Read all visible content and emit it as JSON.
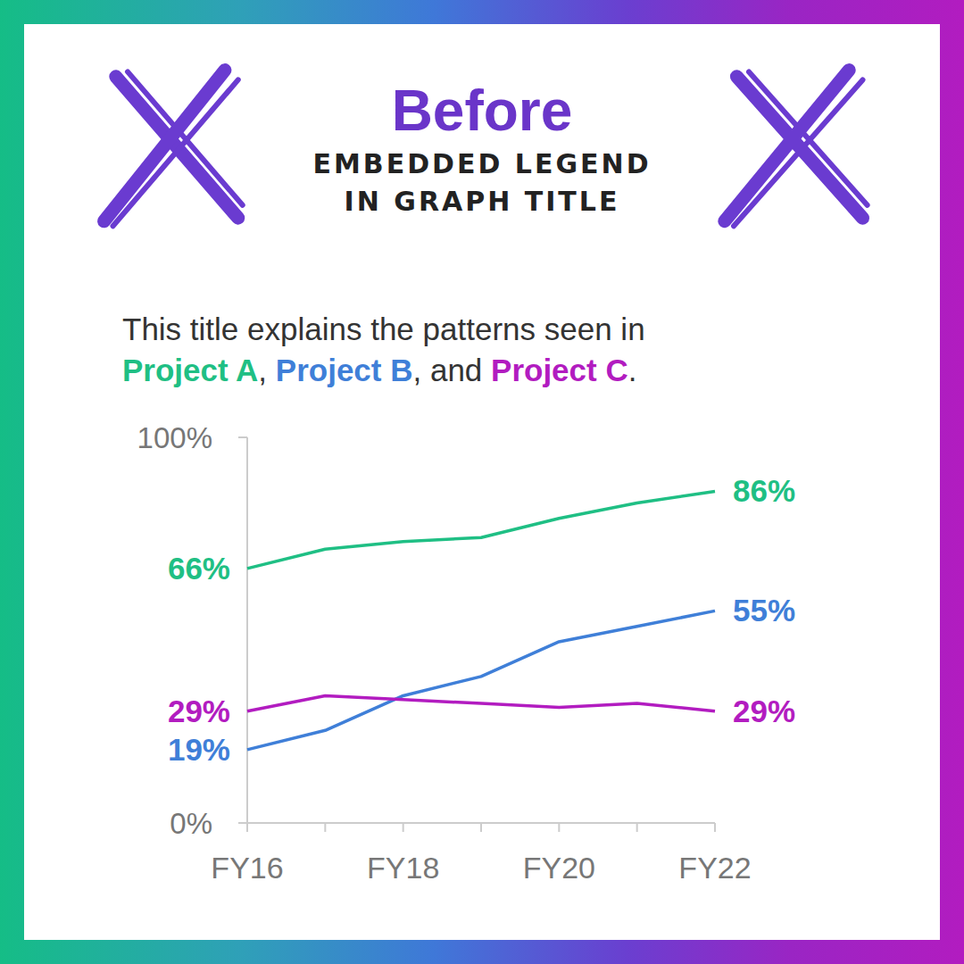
{
  "header": {
    "title": "Before",
    "subtitle_lines": [
      "EMBEDDED LEGEND",
      "IN GRAPH TITLE"
    ]
  },
  "chart_data": {
    "type": "line",
    "title": "This title explains the patterns seen in Project A, Project B, and Project C.",
    "categories": [
      "FY16",
      null,
      "FY18",
      null,
      "FY20",
      null,
      "FY22"
    ],
    "series": [
      {
        "name": "Project A",
        "color": "#1fbf84",
        "values": [
          66,
          71,
          73,
          74,
          79,
          83,
          86
        ],
        "value_labels": [
          "66%",
          null,
          null,
          null,
          null,
          null,
          "86%"
        ]
      },
      {
        "name": "Project B",
        "color": "#3f7fd8",
        "values": [
          19,
          24,
          33,
          38,
          47,
          51,
          55
        ],
        "value_labels": [
          "19%",
          null,
          null,
          null,
          null,
          null,
          "55%"
        ]
      },
      {
        "name": "Project C",
        "color": "#b21cc0",
        "values": [
          29,
          33,
          32,
          31,
          30,
          31,
          29
        ],
        "value_labels": [
          "29%",
          null,
          null,
          null,
          null,
          null,
          "29%"
        ]
      }
    ],
    "ylim": [
      0,
      100
    ],
    "yticks": [
      {
        "value": 0,
        "label": "0%"
      },
      {
        "value": 100,
        "label": "100%"
      }
    ],
    "grid": false,
    "data_labels": true
  }
}
